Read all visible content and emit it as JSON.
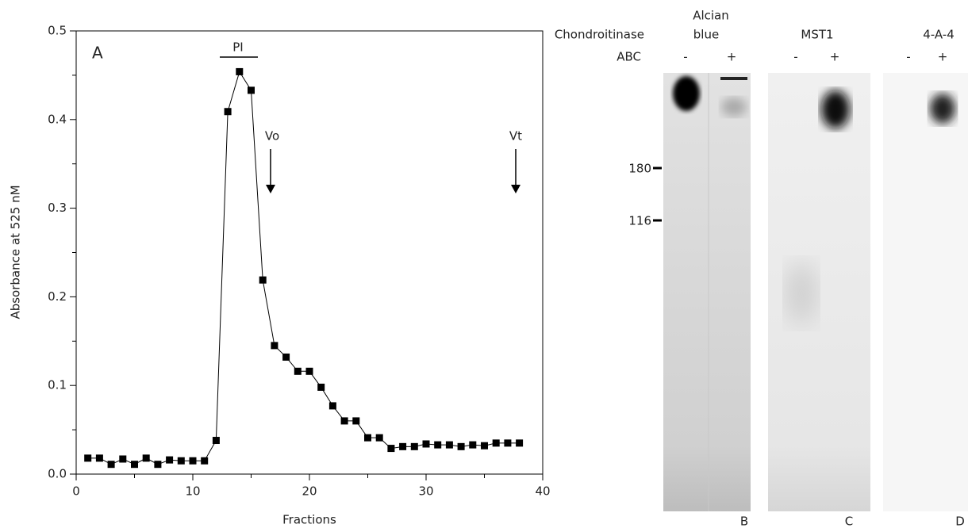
{
  "chart_data": {
    "type": "line",
    "panel": "A",
    "xlabel": "Fractions",
    "ylabel": "Absorbance at 525 nM",
    "x": [
      1,
      2,
      3,
      4,
      5,
      6,
      7,
      8,
      9,
      10,
      11,
      12,
      13,
      14,
      15,
      16,
      17,
      18,
      19,
      20,
      21,
      22,
      23,
      24,
      25,
      26,
      27,
      28,
      29,
      30,
      31,
      32,
      33,
      34,
      35,
      36,
      37,
      38
    ],
    "values": [
      0.018,
      0.018,
      0.011,
      0.017,
      0.011,
      0.018,
      0.011,
      0.016,
      0.015,
      0.015,
      0.015,
      0.038,
      0.409,
      0.454,
      0.433,
      0.219,
      0.145,
      0.132,
      0.116,
      0.116,
      0.098,
      0.077,
      0.06,
      0.06,
      0.041,
      0.041,
      0.029,
      0.031,
      0.031,
      0.034,
      0.033,
      0.033,
      0.031,
      0.033,
      0.032,
      0.035,
      0.035,
      0.035
    ],
    "color": "#000000",
    "xlim": [
      0,
      40
    ],
    "xticks": [
      0,
      10,
      20,
      30,
      40
    ],
    "xminorticks": [
      5,
      15,
      25,
      35
    ],
    "ylim": [
      0,
      0.5
    ],
    "yticks": [
      {
        "value": 0,
        "label": "0.0"
      },
      0.1,
      0.2,
      0.3,
      0.4,
      0.5
    ],
    "yminorticks": [
      0.05,
      0.15,
      0.25,
      0.35,
      0.45
    ],
    "annotations": [
      "PI",
      "Vo",
      "Vt"
    ]
  },
  "gel": {
    "row_labels": [
      "Chondroitinase",
      "ABC"
    ],
    "panels": [
      {
        "title": [
          "Alcian",
          "blue"
        ],
        "lanes": [
          "-",
          "+"
        ],
        "letter": "B"
      },
      {
        "title": [
          "MST1"
        ],
        "lanes": [
          "-",
          "+"
        ],
        "letter": "C"
      },
      {
        "title": [
          "4-A-4"
        ],
        "lanes": [
          "-",
          "+"
        ],
        "letter": "D"
      }
    ],
    "markers": [
      180,
      116
    ]
  }
}
